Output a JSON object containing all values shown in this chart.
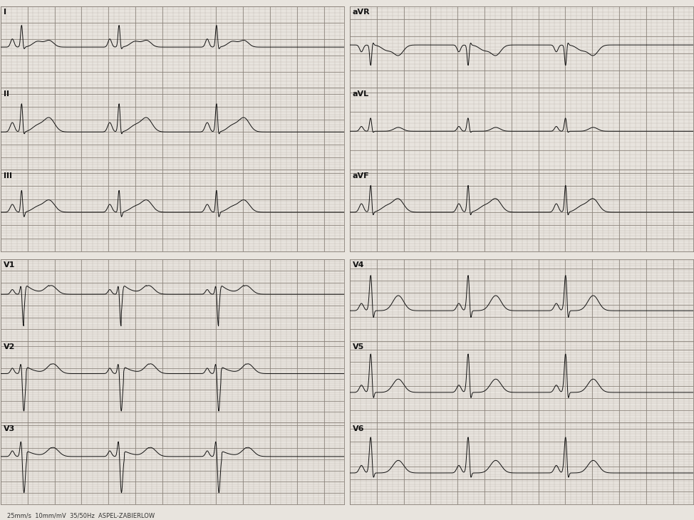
{
  "bg_color": "#e8e4de",
  "grid_minor_color": "#b8b0a8",
  "grid_major_color": "#888078",
  "line_color": "#111111",
  "line_width": 0.7,
  "label_color": "#111111",
  "label_fontsize": 8,
  "bottom_text": "25mm/s  10mm/mV  35/50Hz  ASPEL-ZABIERLOW",
  "leads_left_top": [
    "I",
    "II",
    "III"
  ],
  "leads_left_bot": [
    "V1",
    "V2",
    "V3"
  ],
  "leads_right_top": [
    "aVR",
    "aVL",
    "aVF"
  ],
  "leads_right_bot": [
    "V4",
    "V5",
    "V6"
  ]
}
